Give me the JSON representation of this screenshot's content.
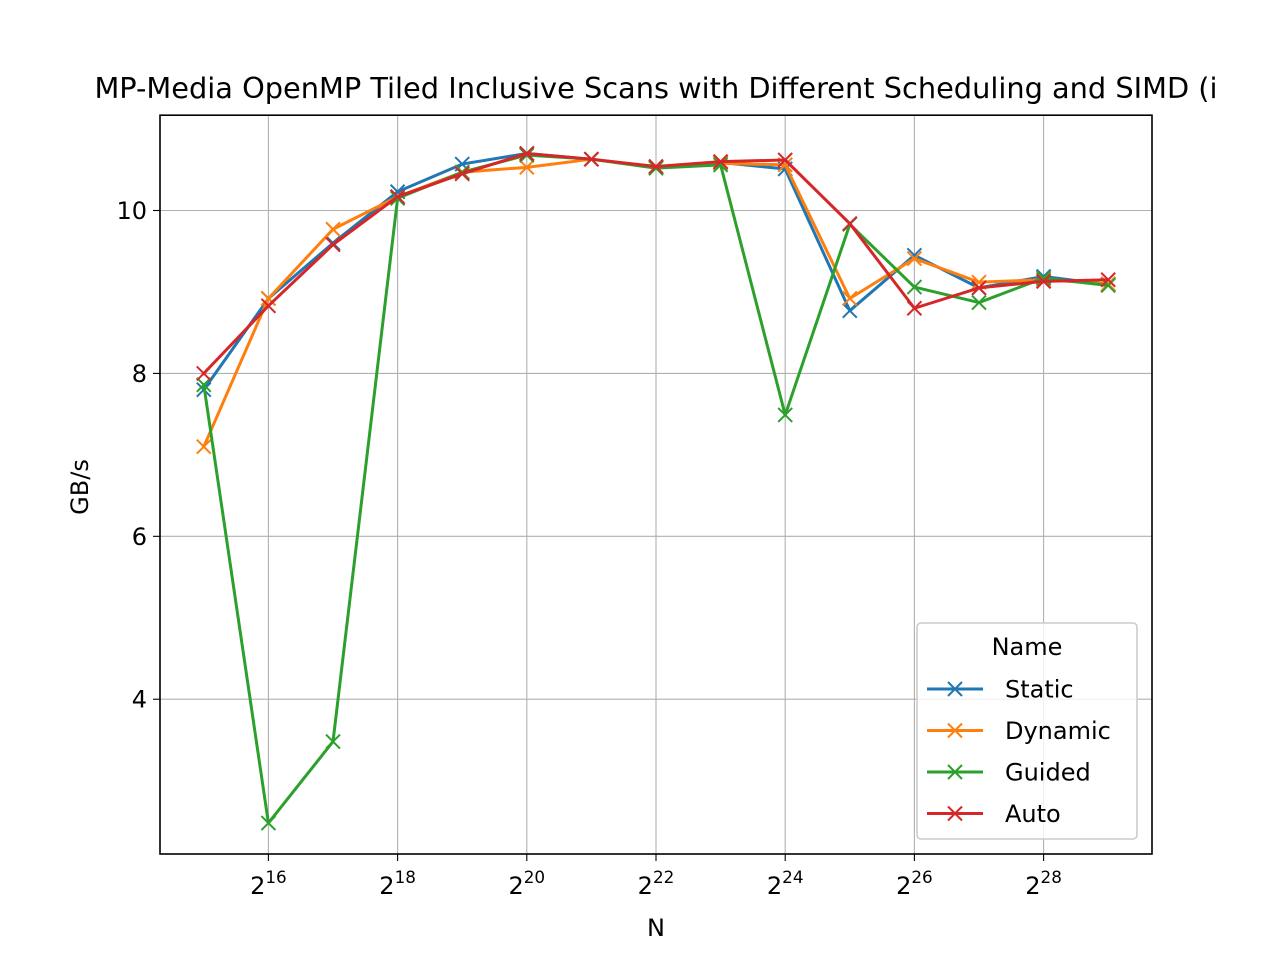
{
  "chart_data": {
    "type": "line",
    "title": "MP-Media OpenMP Tiled Inclusive Scans with Different Scheduling and SIMD (i",
    "xlabel": "N",
    "ylabel": "GB/s",
    "x_scale": "log2",
    "x_ticks": [
      {
        "value": 65536,
        "base": "2",
        "exp": "16"
      },
      {
        "value": 262144,
        "base": "2",
        "exp": "18"
      },
      {
        "value": 1048576,
        "base": "2",
        "exp": "20"
      },
      {
        "value": 4194304,
        "base": "2",
        "exp": "22"
      },
      {
        "value": 16777216,
        "base": "2",
        "exp": "24"
      },
      {
        "value": 67108864,
        "base": "2",
        "exp": "26"
      },
      {
        "value": 268435456,
        "base": "2",
        "exp": "28"
      }
    ],
    "y_ticks": [
      4,
      6,
      8,
      10
    ],
    "xlim": [
      20480,
      858993459
    ],
    "ylim": [
      2.1,
      11.17
    ],
    "grid": true,
    "marker": "x",
    "legend": {
      "title": "Name",
      "placement": "lower-right"
    },
    "x": [
      32768,
      65536,
      131072,
      262144,
      524288,
      1048576,
      2097152,
      4194304,
      8388608,
      16777216,
      33554432,
      67108864,
      134217728,
      268435456,
      536870912
    ],
    "series": [
      {
        "name": "Static",
        "color": "#1f77b4",
        "values": [
          7.8,
          8.92,
          9.6,
          10.23,
          10.57,
          10.7,
          10.63,
          10.53,
          10.59,
          10.51,
          8.77,
          9.45,
          9.05,
          9.19,
          9.09
        ]
      },
      {
        "name": "Dynamic",
        "color": "#ff7f0e",
        "values": [
          7.1,
          8.92,
          9.77,
          10.17,
          10.47,
          10.53,
          10.63,
          10.53,
          10.58,
          10.56,
          8.92,
          9.41,
          9.12,
          9.15,
          9.1
        ]
      },
      {
        "name": "Guided",
        "color": "#2ca02c",
        "values": [
          7.86,
          2.48,
          3.48,
          10.15,
          10.47,
          10.68,
          10.63,
          10.52,
          10.56,
          7.49,
          9.83,
          9.06,
          8.87,
          9.17,
          9.08
        ]
      },
      {
        "name": "Auto",
        "color": "#d62728",
        "values": [
          8.0,
          8.83,
          9.58,
          10.17,
          10.45,
          10.7,
          10.63,
          10.54,
          10.6,
          10.62,
          9.84,
          8.8,
          9.05,
          9.13,
          9.15
        ]
      }
    ]
  }
}
